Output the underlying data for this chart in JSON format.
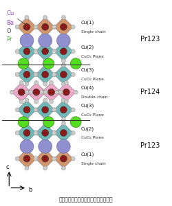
{
  "title": "図１：ハイブリッド超伝導物質の構造",
  "bg_color": "#ffffff",
  "cu_color": "#8b1a1a",
  "ba_color": "#9090d0",
  "pr_color": "#55dd22",
  "o_color": "#cccccc",
  "teal_fill": "#70b8b8",
  "peach_fill": "#d4956a",
  "pink_fill": "#f0a8c8",
  "line_color": "#888888",
  "cu_label_color": "#8844bb",
  "ba_label_color": "#8844bb",
  "o_label_color": "#555555",
  "pr_label_color": "#44aa22",
  "pr123_color": "#222222",
  "pr124_color": "#222222",
  "right_labels": [
    {
      "text1": "Cu(1)",
      "text2": "Single chain"
    },
    {
      "text1": "Cu(2)",
      "text2": "CuO₂ Plane"
    },
    {
      "text1": "Cu(3)",
      "text2": "CuO₂ Plane"
    },
    {
      "text1": "Cu(4)",
      "text2": "Double chain"
    },
    {
      "text1": "Cu(3)",
      "text2": "CuO₂ Plane"
    },
    {
      "text1": "Cu(2)",
      "text2": "CuO₂ Plane"
    },
    {
      "text1": "Cu(1)",
      "text2": "Single chain"
    }
  ]
}
